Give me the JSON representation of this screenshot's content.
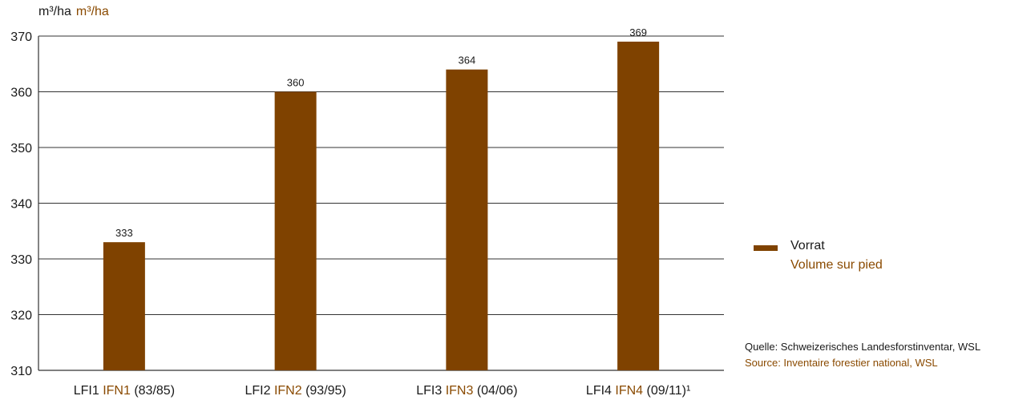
{
  "unit_label": {
    "de": "m³/ha",
    "fr": "m³/ha"
  },
  "legend": {
    "de": "Vorrat",
    "fr": "Volume sur pied",
    "color": "#7f4200"
  },
  "source": {
    "de": "Quelle: Schweizerisches Landesforstinventar, WSL",
    "fr": "Source: Inventaire forestier national, WSL"
  },
  "chart_data": {
    "type": "bar",
    "categories": [
      {
        "de": "LFI1",
        "fr": "IFN1",
        "period": "(83/85)"
      },
      {
        "de": "LFI2",
        "fr": "IFN2",
        "period": "(93/95)"
      },
      {
        "de": "LFI3",
        "fr": "IFN3",
        "period": "(04/06)"
      },
      {
        "de": "LFI4",
        "fr": "IFN4",
        "period": "(09/11)¹"
      }
    ],
    "values": [
      333,
      360,
      364,
      369
    ],
    "ylim": [
      310,
      370
    ],
    "yticks": [
      310,
      320,
      330,
      340,
      350,
      360,
      370
    ],
    "grid": true,
    "legend_position": "right",
    "bar_color": "#7f4200",
    "accent_color": "#8a4a00"
  }
}
